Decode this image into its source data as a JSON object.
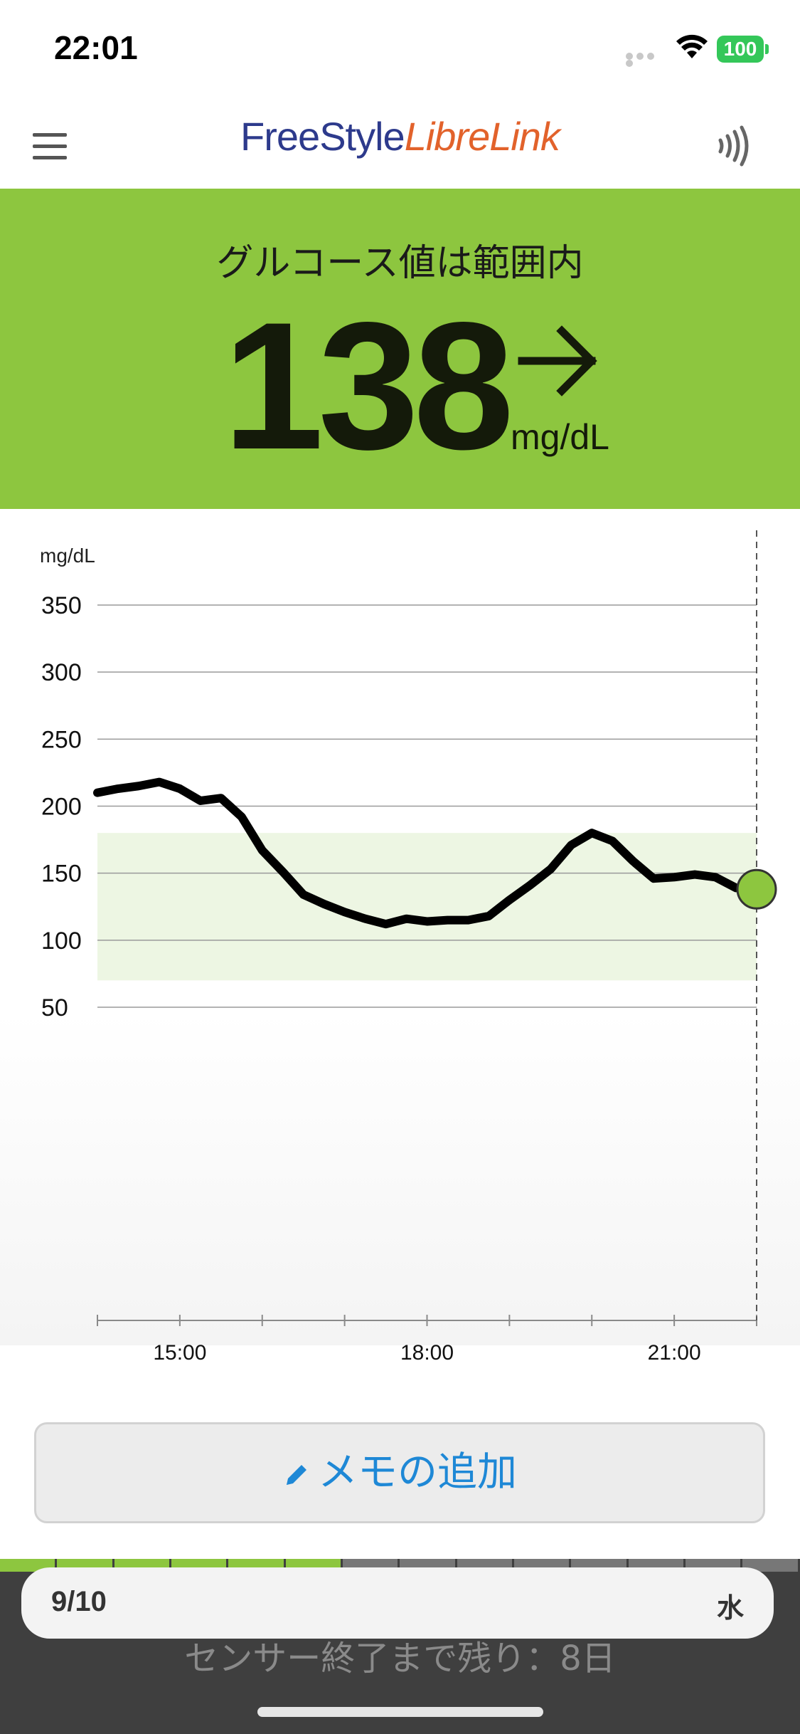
{
  "status_bar": {
    "time": "22:01",
    "battery": "100"
  },
  "header": {
    "logo_part1": "FreeStyle",
    "logo_part2": "LibreLink"
  },
  "banner": {
    "status_text": "グルコース値は範囲内",
    "glucose_value": "138",
    "unit": "mg/dL",
    "trend": "arrow-right",
    "color": "#8dc63f"
  },
  "chart_data": {
    "type": "line",
    "ylabel": "mg/dL",
    "ylim": [
      0,
      350
    ],
    "yticks": [
      "350",
      "300",
      "250",
      "200",
      "150",
      "100",
      "50"
    ],
    "ytick_values": [
      350,
      300,
      250,
      200,
      150,
      100,
      50
    ],
    "xticks": [
      "15:00",
      "18:00",
      "21:00"
    ],
    "xtick_values": [
      15,
      18,
      21
    ],
    "xlim": [
      14,
      22
    ],
    "target_range": [
      70,
      180
    ],
    "target_color": "#edf6e3",
    "line_color": "#000000",
    "current_marker_color": "#8dc63f",
    "series": [
      {
        "x": [
          14.0,
          14.25,
          14.5,
          14.75,
          15.0,
          15.25,
          15.5,
          15.75,
          16.0,
          16.25,
          16.5,
          16.75,
          17.0,
          17.25,
          17.5,
          17.75,
          18.0,
          18.25,
          18.5,
          18.75,
          19.0,
          19.25,
          19.5,
          19.75,
          20.0,
          20.25,
          20.5,
          20.75,
          21.0,
          21.25,
          21.5,
          21.75,
          22.0
        ],
        "y": [
          210,
          213,
          215,
          218,
          213,
          204,
          206,
          192,
          167,
          151,
          134,
          127,
          121,
          116,
          112,
          116,
          114,
          115,
          115,
          118,
          130,
          141,
          153,
          171,
          180,
          174,
          159,
          146,
          147,
          149,
          147,
          139,
          138
        ]
      }
    ]
  },
  "memo_button": {
    "label": "メモの追加"
  },
  "bottom": {
    "date": "9/10",
    "weekday": "水",
    "sensor_remaining": "センサー終了まで残り：8日",
    "sensor_days_elapsed": 6,
    "sensor_days_total": 14
  }
}
